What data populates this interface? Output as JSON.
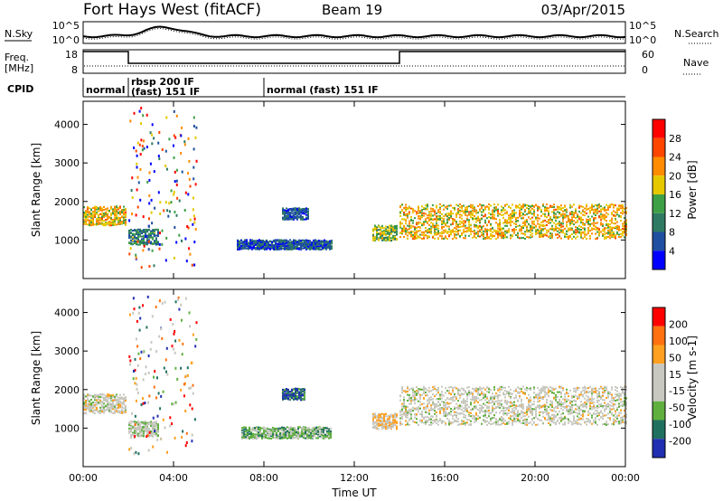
{
  "header": {
    "title": "Fort Hays West (fitACF)",
    "beam": "Beam 19",
    "date": "03/Apr/2015"
  },
  "summary": {
    "nsky_label": "N.Sky",
    "nsearch_label": "N.Search",
    "freq_label_1": "Freq.",
    "freq_label_2": "[MHz]",
    "nave_label": "Nave",
    "cpid_label": "CPID",
    "noise_ticks": [
      "10^5",
      "10^0"
    ],
    "freq_ticks": [
      "18",
      "8"
    ],
    "nave_ticks": [
      "60",
      "0"
    ],
    "cpid_segments": [
      {
        "label": "normal",
        "start": 0.0,
        "end": 2.0
      },
      {
        "label": "rbsp 200 IF",
        "label2": "(fast) 151 IF",
        "start": 2.0,
        "end": 8.0
      },
      {
        "label": "normal (fast) 151 IF",
        "start": 8.0,
        "end": 24.0
      }
    ],
    "freq_steps": [
      {
        "start": 0.0,
        "end": 2.0,
        "value": "high"
      },
      {
        "start": 2.0,
        "end": 14.0,
        "value": "low"
      },
      {
        "start": 14.0,
        "end": 24.0,
        "value": "high"
      }
    ]
  },
  "colors": {
    "power_scale": [
      "#0000ff",
      "#1f4fa0",
      "#2e7a63",
      "#3ea046",
      "#e6c800",
      "#ff8c00",
      "#ff4500",
      "#ff0000"
    ],
    "velocity_scale": [
      "#2030b0",
      "#207060",
      "#60b040",
      "#c8c8c0",
      "#c8c8c0",
      "#ffa020",
      "#ff7010",
      "#ff0000"
    ]
  },
  "chart_data": [
    {
      "type": "heatmap",
      "name": "power",
      "xlabel": "",
      "ylabel": "Slant Range [km]",
      "xlim": [
        0,
        24
      ],
      "ylim": [
        0,
        4600
      ],
      "yticks": [
        "1000",
        "2000",
        "3000",
        "4000"
      ],
      "colorbar_label": "Power [dB]",
      "colorbar_ticks": [
        "4",
        "8",
        "12",
        "16",
        "20",
        "24",
        "28"
      ],
      "bands": [
        {
          "x_start": 0.0,
          "x_end": 1.9,
          "y_center": 1650,
          "y_width": 500,
          "value": 18
        },
        {
          "x_start": 2.0,
          "x_end": 3.3,
          "y_center": 1100,
          "y_width": 400,
          "value": 10
        },
        {
          "x_start": 6.8,
          "x_end": 11.0,
          "y_center": 900,
          "y_width": 250,
          "value": 6
        },
        {
          "x_start": 8.8,
          "x_end": 10.0,
          "y_center": 1700,
          "y_width": 300,
          "value": 6
        },
        {
          "x_start": 12.8,
          "x_end": 13.9,
          "y_center": 1200,
          "y_width": 400,
          "value": 14
        },
        {
          "x_start": 14.0,
          "x_end": 24.0,
          "y_center": 1500,
          "y_width": 900,
          "value": 18
        }
      ]
    },
    {
      "type": "heatmap",
      "name": "velocity",
      "xlabel": "Time UT",
      "ylabel": "Slant Range [km]",
      "xlim": [
        0,
        24
      ],
      "ylim": [
        0,
        4600
      ],
      "xticks": [
        "00:00",
        "04:00",
        "08:00",
        "12:00",
        "16:00",
        "20:00",
        "00:00"
      ],
      "yticks": [
        "1000",
        "2000",
        "3000",
        "4000"
      ],
      "colorbar_label": "Velocity [m s-1]",
      "colorbar_ticks": [
        "200",
        "100",
        "50",
        "15",
        "-15",
        "-50",
        "-100",
        "-200"
      ],
      "bands": [
        {
          "x_start": 0.0,
          "x_end": 1.9,
          "y_center": 1650,
          "y_width": 500,
          "value": 0
        },
        {
          "x_start": 2.0,
          "x_end": 3.3,
          "y_center": 1000,
          "y_width": 400,
          "value": -20
        },
        {
          "x_start": 7.0,
          "x_end": 11.0,
          "y_center": 900,
          "y_width": 300,
          "value": -60
        },
        {
          "x_start": 8.8,
          "x_end": 9.8,
          "y_center": 1900,
          "y_width": 300,
          "value": -150
        },
        {
          "x_start": 12.8,
          "x_end": 13.9,
          "y_center": 1200,
          "y_width": 400,
          "value": 30
        },
        {
          "x_start": 14.0,
          "x_end": 24.0,
          "y_center": 1600,
          "y_width": 1000,
          "value": 0
        }
      ]
    }
  ]
}
